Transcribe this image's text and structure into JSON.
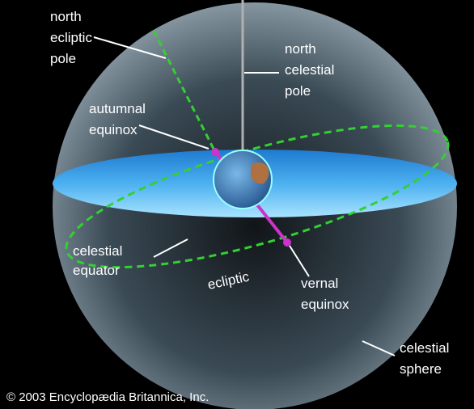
{
  "labels": [
    [
      "north",
      "ecliptic",
      "pole"
    ],
    [
      "north",
      "celestial",
      "pole"
    ],
    [
      "autumnal",
      "equinox"
    ],
    [
      "celestial",
      "equator"
    ],
    [
      "ecliptic"
    ],
    [
      "vernal",
      "equinox"
    ],
    [
      "celestial",
      "sphere"
    ]
  ],
  "copyright": "© 2003 Encyclopædia Britannica, Inc."
}
